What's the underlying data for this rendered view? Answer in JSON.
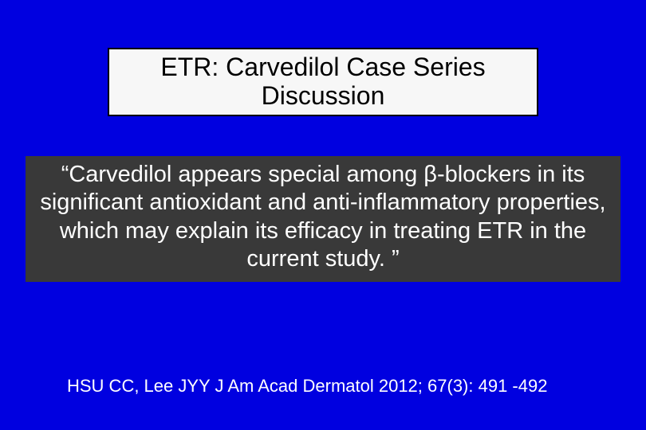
{
  "slide": {
    "background_color": "#0000e0",
    "title": {
      "line1": "ETR: Carvedilol Case Series",
      "line2": "Discussion",
      "box_bg": "#f7f7f7",
      "border_color": "#000000",
      "text_color": "#000000",
      "fontsize": 32
    },
    "quote": {
      "text": "“Carvedilol appears special among β-blockers in its significant antioxidant and anti-inflammatory properties, which may explain its efficacy in treating ETR in the current study. ”",
      "box_bg": "#393939",
      "text_color": "#ffffff",
      "fontsize": 29
    },
    "citation": {
      "text": "HSU  CC, Lee JYY J Am Acad Dermatol 2012; 67(3): 491 -492",
      "text_color": "#ffffff",
      "fontsize": 22
    }
  }
}
